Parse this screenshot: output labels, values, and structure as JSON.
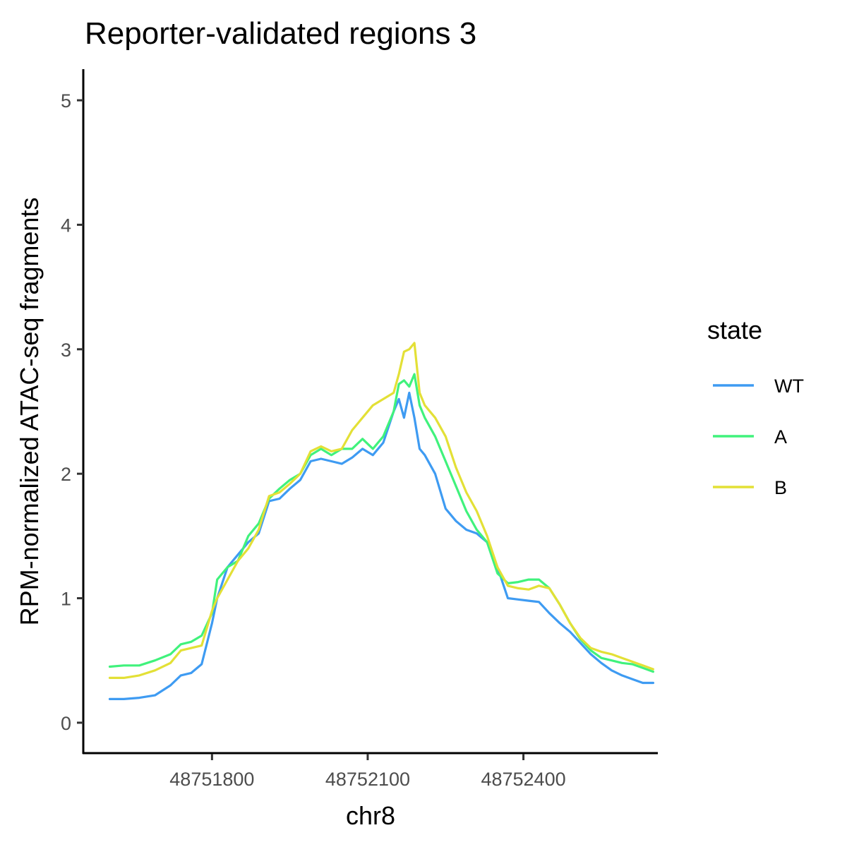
{
  "chart_data": {
    "type": "line",
    "title": "Reporter-validated regions 3",
    "xlabel": "chr8",
    "ylabel": "RPM-normalized ATAC-seq fragments",
    "xlim": [
      48751552,
      48752659
    ],
    "ylim": [
      -0.25,
      5.25
    ],
    "x_ticks": [
      48751800,
      48752100,
      48752400
    ],
    "x_tick_labels": [
      "48751800",
      "48752100",
      "48752400"
    ],
    "y_ticks": [
      0,
      1,
      2,
      3,
      4,
      5
    ],
    "y_tick_labels": [
      "0",
      "1",
      "2",
      "3",
      "4",
      "5"
    ],
    "grid": false,
    "legend": {
      "title": "state",
      "position": "right"
    },
    "x": [
      48751603,
      48751630,
      48751660,
      48751690,
      48751720,
      48751740,
      48751760,
      48751780,
      48751800,
      48751810,
      48751830,
      48751850,
      48751870,
      48751890,
      48751910,
      48751930,
      48751950,
      48751970,
      48751990,
      48752010,
      48752030,
      48752050,
      48752070,
      48752090,
      48752110,
      48752130,
      48752150,
      48752160,
      48752170,
      48752180,
      48752190,
      48752200,
      48752210,
      48752230,
      48752250,
      48752270,
      48752290,
      48752310,
      48752330,
      48752350,
      48752370,
      48752390,
      48752410,
      48752430,
      48752450,
      48752470,
      48752490,
      48752510,
      48752530,
      48752550,
      48752570,
      48752590,
      48752610,
      48752630,
      48752650
    ],
    "series": [
      {
        "name": "WT",
        "color": "#3e9bf2",
        "values": [
          0.19,
          0.19,
          0.2,
          0.22,
          0.3,
          0.38,
          0.4,
          0.47,
          0.8,
          1.0,
          1.25,
          1.35,
          1.45,
          1.52,
          1.78,
          1.8,
          1.88,
          1.95,
          2.1,
          2.12,
          2.1,
          2.08,
          2.13,
          2.2,
          2.15,
          2.25,
          2.5,
          2.6,
          2.45,
          2.65,
          2.45,
          2.2,
          2.15,
          2.0,
          1.72,
          1.62,
          1.55,
          1.52,
          1.45,
          1.25,
          1.0,
          0.99,
          0.98,
          0.97,
          0.88,
          0.8,
          0.73,
          0.64,
          0.55,
          0.48,
          0.42,
          0.38,
          0.35,
          0.32,
          0.32
        ]
      },
      {
        "name": "A",
        "color": "#40f27c",
        "values": [
          0.45,
          0.46,
          0.46,
          0.5,
          0.55,
          0.63,
          0.65,
          0.7,
          0.88,
          1.15,
          1.25,
          1.3,
          1.5,
          1.6,
          1.8,
          1.88,
          1.95,
          2.0,
          2.15,
          2.2,
          2.15,
          2.2,
          2.2,
          2.28,
          2.2,
          2.3,
          2.5,
          2.72,
          2.75,
          2.7,
          2.8,
          2.55,
          2.45,
          2.3,
          2.1,
          1.9,
          1.7,
          1.55,
          1.45,
          1.2,
          1.12,
          1.13,
          1.15,
          1.15,
          1.08,
          0.95,
          0.8,
          0.67,
          0.58,
          0.52,
          0.5,
          0.48,
          0.47,
          0.44,
          0.41
        ]
      },
      {
        "name": "B",
        "color": "#e3e036",
        "values": [
          0.36,
          0.36,
          0.38,
          0.42,
          0.48,
          0.58,
          0.6,
          0.62,
          0.9,
          1.0,
          1.15,
          1.3,
          1.4,
          1.55,
          1.82,
          1.85,
          1.92,
          2.0,
          2.18,
          2.22,
          2.18,
          2.2,
          2.35,
          2.45,
          2.55,
          2.6,
          2.65,
          2.8,
          2.98,
          3.0,
          3.05,
          2.65,
          2.55,
          2.45,
          2.3,
          2.05,
          1.85,
          1.7,
          1.5,
          1.25,
          1.1,
          1.08,
          1.07,
          1.1,
          1.08,
          0.95,
          0.8,
          0.68,
          0.6,
          0.57,
          0.55,
          0.52,
          0.49,
          0.46,
          0.43
        ]
      }
    ]
  }
}
